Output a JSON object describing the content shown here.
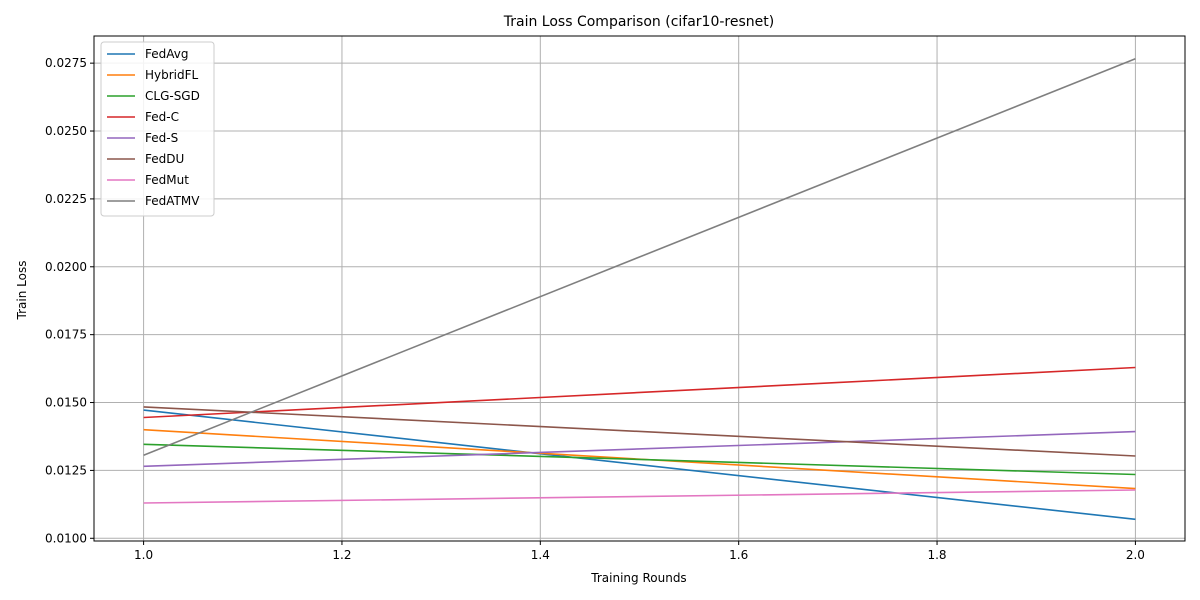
{
  "chart_data": {
    "type": "line",
    "title": "Train Loss Comparison (cifar10-resnet)",
    "xlabel": "Training Rounds",
    "ylabel": "Train Loss",
    "xlim": [
      0.95,
      2.05
    ],
    "ylim": [
      0.0099,
      0.0285
    ],
    "xticks": [
      "1.0",
      "1.2",
      "1.4",
      "1.6",
      "1.8",
      "2.0"
    ],
    "yticks": [
      "0.0100",
      "0.0125",
      "0.0150",
      "0.0175",
      "0.0200",
      "0.0225",
      "0.0250",
      "0.0275"
    ],
    "grid": true,
    "legend_position": "top-left",
    "x": [
      1.0,
      2.0
    ],
    "series": [
      {
        "name": "FedAvg",
        "color": "#1f77b4",
        "values": [
          0.01472,
          0.0107
        ]
      },
      {
        "name": "HybridFL",
        "color": "#ff7f0e",
        "values": [
          0.014,
          0.01183
        ]
      },
      {
        "name": "CLG-SGD",
        "color": "#2ca02c",
        "values": [
          0.01346,
          0.01235
        ]
      },
      {
        "name": "Fed-C",
        "color": "#d62728",
        "values": [
          0.01445,
          0.01629
        ]
      },
      {
        "name": "Fed-S",
        "color": "#9467bd",
        "values": [
          0.01265,
          0.01393
        ]
      },
      {
        "name": "FedDU",
        "color": "#8c564b",
        "values": [
          0.01484,
          0.01303
        ]
      },
      {
        "name": "FedMut",
        "color": "#e377c2",
        "values": [
          0.0113,
          0.01178
        ]
      },
      {
        "name": "FedATMV",
        "color": "#7f7f7f",
        "values": [
          0.01306,
          0.02766
        ]
      }
    ]
  }
}
